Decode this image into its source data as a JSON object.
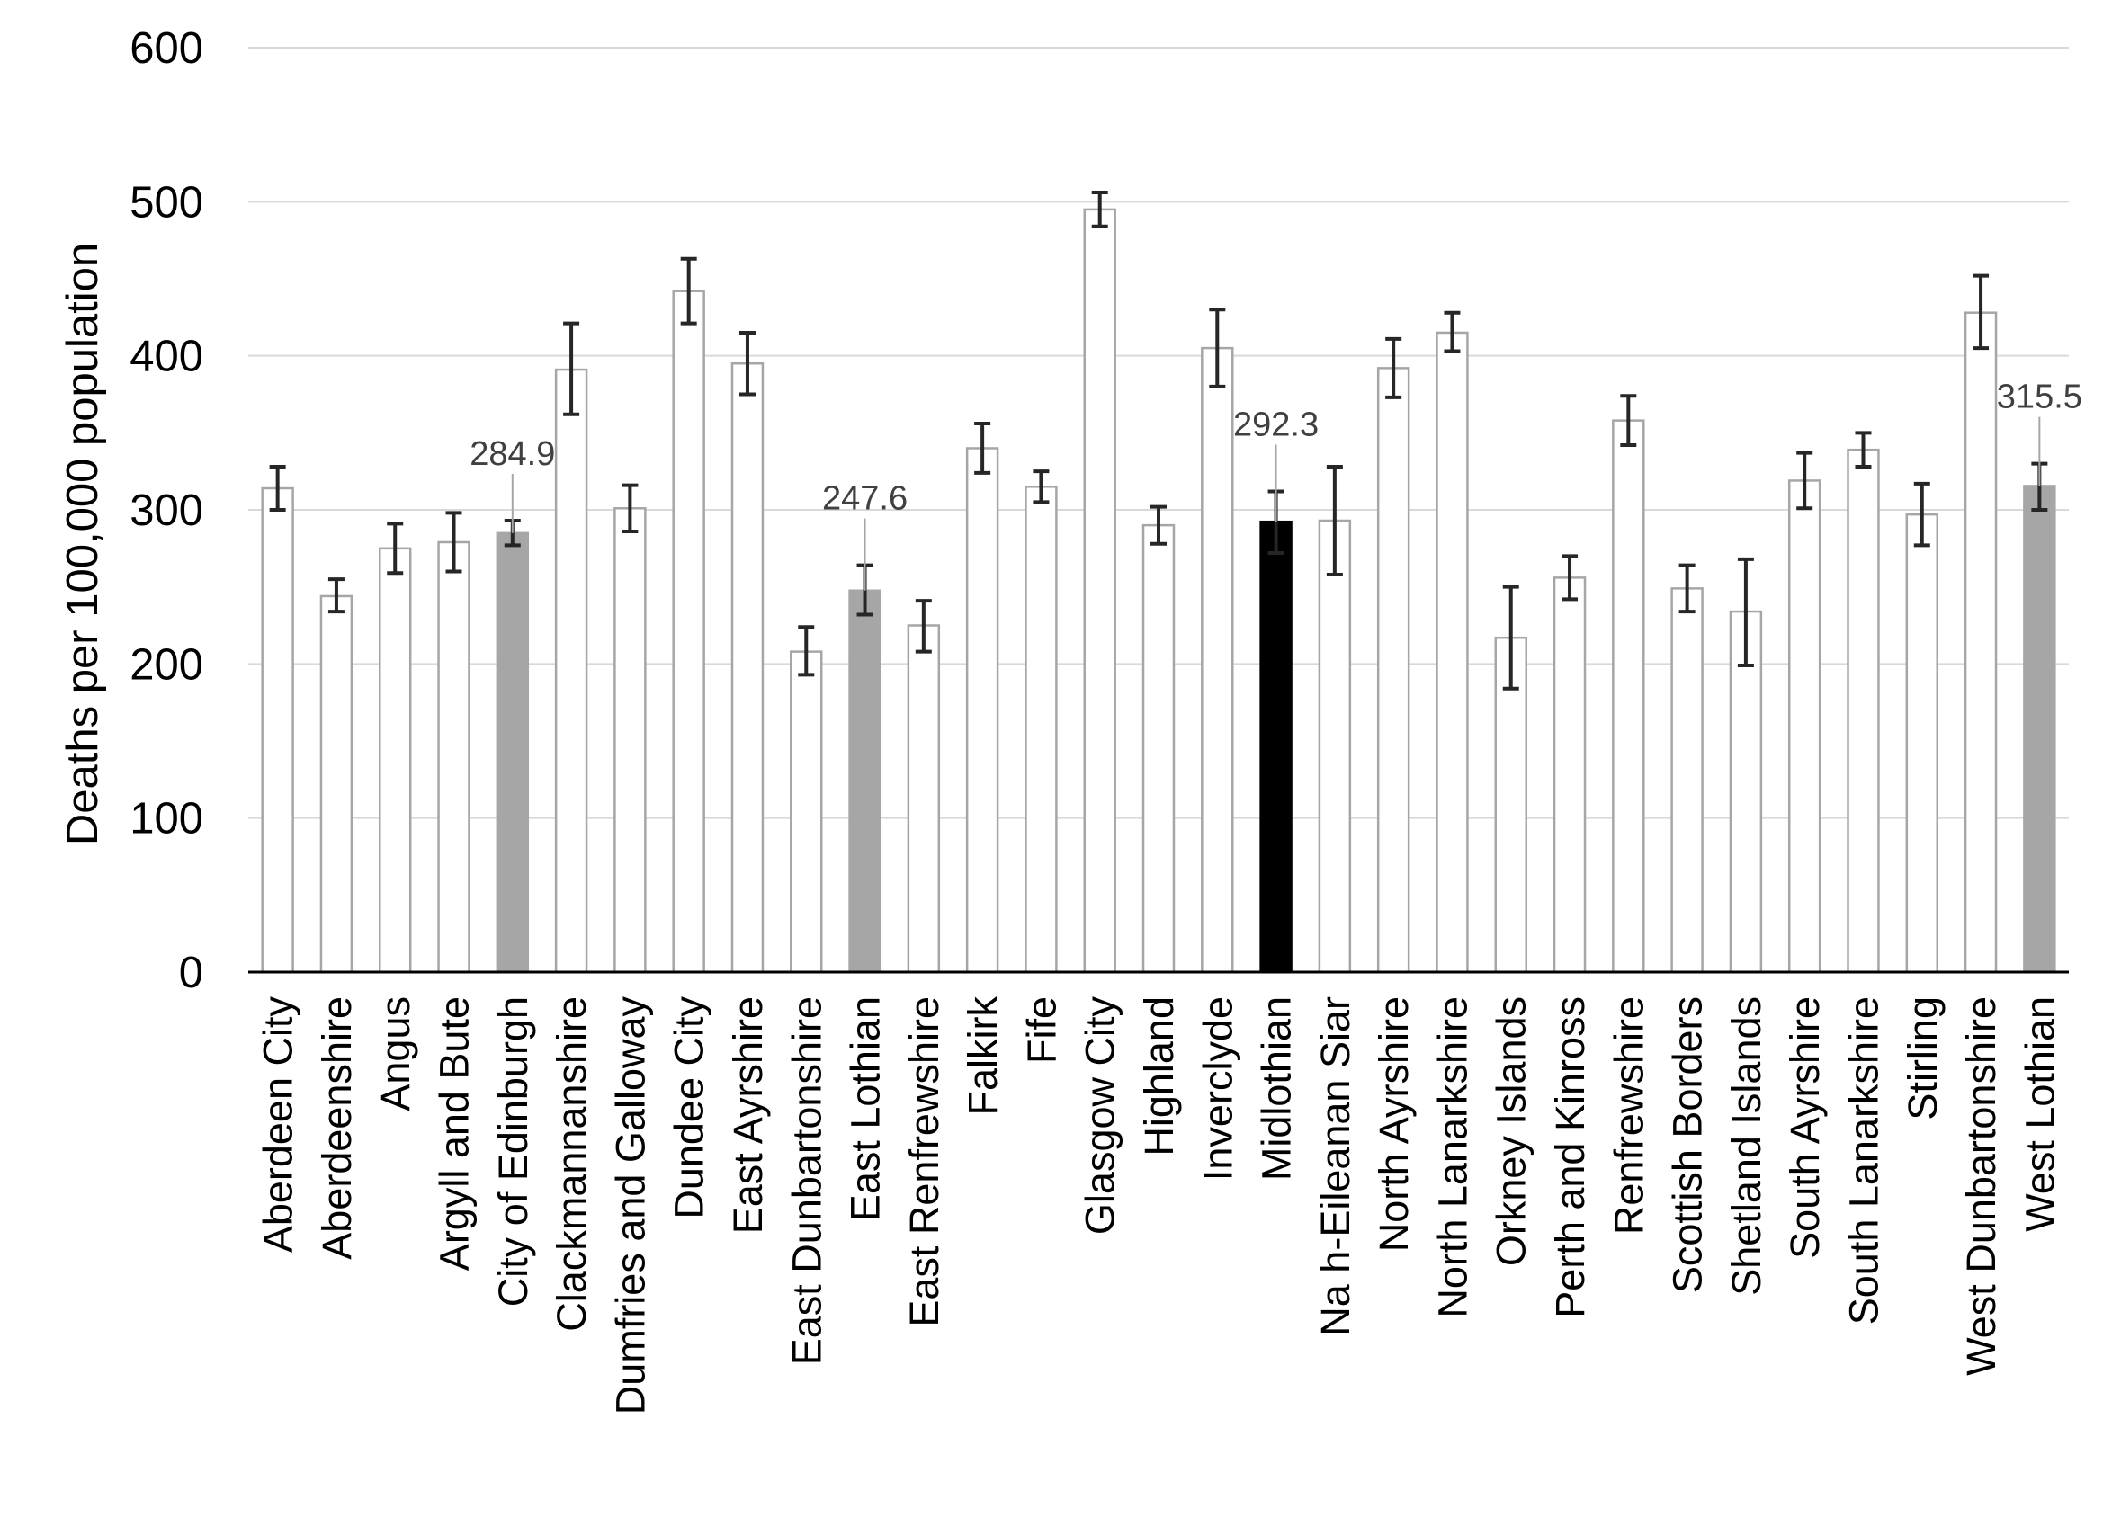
{
  "chart_data": {
    "type": "bar",
    "title": "",
    "xlabel": "",
    "ylabel": "Deaths per 100,000 population",
    "ylim": [
      0,
      600
    ],
    "yticks": [
      0,
      100,
      200,
      300,
      400,
      500,
      600
    ],
    "grid": true,
    "legend": "none",
    "colors": {
      "default_fill": "#ffffff",
      "default_stroke": "#a6a6a6",
      "highlight_fill": "#a6a6a6",
      "focus_fill": "#000000",
      "error_bar": "#262626",
      "grid": "#d9d9d9",
      "axis": "#000000"
    },
    "categories": [
      "Aberdeen City",
      "Aberdeenshire",
      "Angus",
      "Argyll and Bute",
      "City of Edinburgh",
      "Clackmannanshire",
      "Dumfries and Galloway",
      "Dundee City",
      "East Ayrshire",
      "East Dunbartonshire",
      "East Lothian",
      "East Renfrewshire",
      "Falkirk",
      "Fife",
      "Glasgow City",
      "Highland",
      "Inverclyde",
      "Midlothian",
      "Na h-Eileanan Siar",
      "North Ayrshire",
      "North Lanarkshire",
      "Orkney Islands",
      "Perth and Kinross",
      "Renfrewshire",
      "Scottish Borders",
      "Shetland Islands",
      "South Ayrshire",
      "South Lanarkshire",
      "Stirling",
      "West Dunbartonshire",
      "West Lothian"
    ],
    "values": [
      314,
      244,
      275,
      279,
      284.9,
      391,
      301,
      442,
      395,
      208,
      247.6,
      225,
      340,
      315,
      495,
      290,
      405,
      292.3,
      293,
      392,
      415,
      217,
      256,
      358,
      249,
      234,
      319,
      339,
      297,
      428,
      315.5
    ],
    "error_low": [
      300,
      234,
      259,
      260,
      277,
      362,
      286,
      421,
      375,
      193,
      232,
      208,
      324,
      305,
      484,
      278,
      380,
      272,
      258,
      373,
      403,
      184,
      242,
      342,
      234,
      199,
      301,
      328,
      277,
      405,
      300
    ],
    "error_high": [
      328,
      255,
      291,
      298,
      293,
      421,
      316,
      463,
      415,
      224,
      264,
      241,
      356,
      325,
      506,
      302,
      430,
      312,
      328,
      411,
      428,
      250,
      270,
      374,
      264,
      268,
      337,
      350,
      317,
      452,
      330
    ],
    "highlight": [
      "none",
      "none",
      "none",
      "none",
      "grey",
      "none",
      "none",
      "none",
      "none",
      "none",
      "grey",
      "none",
      "none",
      "none",
      "none",
      "none",
      "none",
      "focus",
      "none",
      "none",
      "none",
      "none",
      "none",
      "none",
      "none",
      "none",
      "none",
      "none",
      "none",
      "none",
      "grey"
    ],
    "data_labels": [
      "",
      "",
      "",
      "",
      "284.9",
      "",
      "",
      "",
      "",
      "",
      "247.6",
      "",
      "",
      "",
      "",
      "",
      "",
      "292.3",
      "",
      "",
      "",
      "",
      "",
      "",
      "",
      "",
      "",
      "",
      "",
      "",
      "315.5"
    ]
  }
}
